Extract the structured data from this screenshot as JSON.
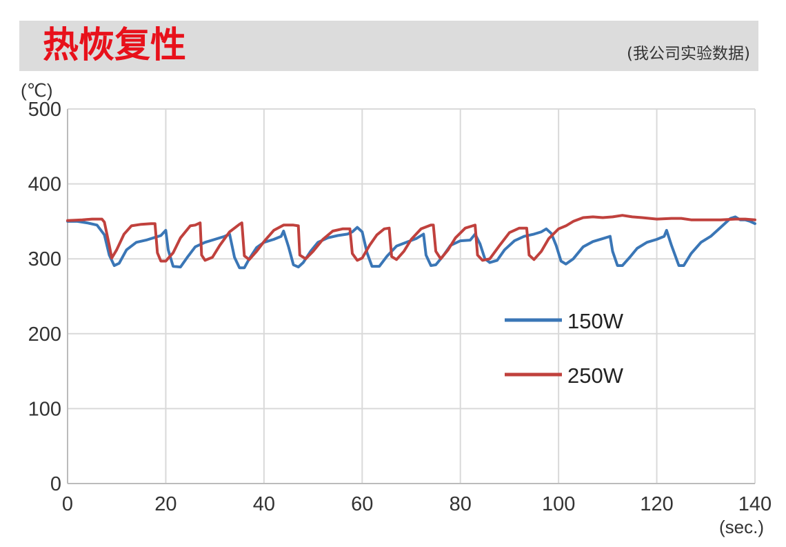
{
  "header": {
    "title": "热恢复性",
    "source_note": "(我公司实验数据)"
  },
  "colors": {
    "title": "#e8111b",
    "header_bg": "#dcdcdc",
    "series_150w": "#3a76b6",
    "series_250w": "#c0413d",
    "grid": "#d9d9d9"
  },
  "chart_data": {
    "type": "line",
    "ylabel": "(℃)",
    "xlabel": "(sec.)",
    "xlim": [
      0,
      140
    ],
    "ylim": [
      0,
      500
    ],
    "x_ticks": [
      "0",
      "20",
      "40",
      "60",
      "80",
      "100",
      "120",
      "140"
    ],
    "y_ticks": [
      "0",
      "100",
      "200",
      "300",
      "400",
      "500"
    ],
    "grid": true,
    "legend_position": "right-middle",
    "series": [
      {
        "name": "150W",
        "color": "#3a76b6",
        "points": [
          [
            0,
            350
          ],
          [
            2,
            350
          ],
          [
            4,
            348
          ],
          [
            6,
            345
          ],
          [
            7.5,
            332
          ],
          [
            8.5,
            305
          ],
          [
            9.5,
            291
          ],
          [
            10.5,
            294
          ],
          [
            12,
            312
          ],
          [
            14,
            322
          ],
          [
            16,
            325
          ],
          [
            18,
            329
          ],
          [
            19,
            331
          ],
          [
            20,
            338
          ],
          [
            20.5,
            312
          ],
          [
            21.5,
            290
          ],
          [
            23,
            289
          ],
          [
            24.5,
            303
          ],
          [
            26,
            316
          ],
          [
            28,
            322
          ],
          [
            30,
            326
          ],
          [
            32,
            330
          ],
          [
            33,
            333
          ],
          [
            34,
            302
          ],
          [
            35,
            288
          ],
          [
            36,
            288
          ],
          [
            37,
            300
          ],
          [
            38.5,
            315
          ],
          [
            40,
            322
          ],
          [
            42,
            326
          ],
          [
            43.5,
            330
          ],
          [
            44,
            337
          ],
          [
            45,
            316
          ],
          [
            46,
            292
          ],
          [
            47,
            289
          ],
          [
            48,
            295
          ],
          [
            49.5,
            310
          ],
          [
            51,
            322
          ],
          [
            53,
            328
          ],
          [
            55,
            331
          ],
          [
            57,
            333
          ],
          [
            58,
            336
          ],
          [
            59,
            342
          ],
          [
            60,
            336
          ],
          [
            61,
            308
          ],
          [
            62,
            290
          ],
          [
            63.5,
            290
          ],
          [
            65,
            303
          ],
          [
            67,
            317
          ],
          [
            69,
            322
          ],
          [
            71,
            327
          ],
          [
            72.5,
            333
          ],
          [
            73,
            305
          ],
          [
            74,
            291
          ],
          [
            75,
            292
          ],
          [
            76.5,
            304
          ],
          [
            78,
            318
          ],
          [
            80,
            324
          ],
          [
            82,
            325
          ],
          [
            83,
            333
          ],
          [
            84,
            320
          ],
          [
            85,
            300
          ],
          [
            86,
            295
          ],
          [
            87.5,
            298
          ],
          [
            89,
            312
          ],
          [
            91,
            324
          ],
          [
            93,
            330
          ],
          [
            95,
            333
          ],
          [
            96.5,
            336
          ],
          [
            97.5,
            340
          ],
          [
            98.5,
            334
          ],
          [
            99.5,
            318
          ],
          [
            100.5,
            297
          ],
          [
            101.5,
            293
          ],
          [
            103,
            300
          ],
          [
            105,
            316
          ],
          [
            107,
            323
          ],
          [
            109,
            327
          ],
          [
            110.5,
            330
          ],
          [
            111,
            310
          ],
          [
            112,
            291
          ],
          [
            113,
            291
          ],
          [
            114.5,
            302
          ],
          [
            116,
            314
          ],
          [
            118,
            322
          ],
          [
            120,
            326
          ],
          [
            121.5,
            330
          ],
          [
            122,
            338
          ],
          [
            123,
            318
          ],
          [
            124.5,
            291
          ],
          [
            125.5,
            291
          ],
          [
            127,
            307
          ],
          [
            129,
            322
          ],
          [
            131,
            330
          ],
          [
            133,
            342
          ],
          [
            135,
            354
          ],
          [
            136,
            356
          ],
          [
            137,
            352
          ],
          [
            138,
            352
          ],
          [
            139,
            350
          ],
          [
            140,
            347
          ]
        ]
      },
      {
        "name": "250W",
        "color": "#c0413d",
        "points": [
          [
            0,
            351
          ],
          [
            3,
            352
          ],
          [
            5,
            353
          ],
          [
            7,
            353
          ],
          [
            7.5,
            349
          ],
          [
            8.5,
            318
          ],
          [
            9,
            301
          ],
          [
            10,
            312
          ],
          [
            11.5,
            333
          ],
          [
            13,
            344
          ],
          [
            15,
            346
          ],
          [
            17,
            347
          ],
          [
            17.8,
            347
          ],
          [
            18.3,
            308
          ],
          [
            19,
            297
          ],
          [
            20,
            297
          ],
          [
            21.5,
            308
          ],
          [
            23,
            328
          ],
          [
            25,
            344
          ],
          [
            26,
            345
          ],
          [
            27,
            348
          ],
          [
            27.3,
            305
          ],
          [
            28,
            298
          ],
          [
            29.5,
            302
          ],
          [
            31,
            318
          ],
          [
            33,
            336
          ],
          [
            35,
            346
          ],
          [
            35.5,
            348
          ],
          [
            36,
            304
          ],
          [
            37,
            299
          ],
          [
            38.5,
            310
          ],
          [
            40,
            323
          ],
          [
            42,
            338
          ],
          [
            44,
            345
          ],
          [
            46,
            345
          ],
          [
            47,
            344
          ],
          [
            47.3,
            305
          ],
          [
            48.5,
            300
          ],
          [
            50,
            310
          ],
          [
            52,
            326
          ],
          [
            54,
            337
          ],
          [
            56,
            340
          ],
          [
            57.5,
            340
          ],
          [
            58,
            307
          ],
          [
            59,
            298
          ],
          [
            60,
            301
          ],
          [
            61.5,
            318
          ],
          [
            63,
            332
          ],
          [
            64.5,
            340
          ],
          [
            65.5,
            341
          ],
          [
            66,
            303
          ],
          [
            67,
            299
          ],
          [
            68.5,
            310
          ],
          [
            70,
            326
          ],
          [
            72,
            340
          ],
          [
            74,
            345
          ],
          [
            74.5,
            345
          ],
          [
            75,
            310
          ],
          [
            76,
            300
          ],
          [
            77.5,
            312
          ],
          [
            79,
            328
          ],
          [
            81,
            341
          ],
          [
            82.5,
            344
          ],
          [
            83,
            345
          ],
          [
            83.5,
            305
          ],
          [
            84.5,
            298
          ],
          [
            86,
            300
          ],
          [
            88,
            318
          ],
          [
            90,
            335
          ],
          [
            92,
            341
          ],
          [
            93.5,
            341
          ],
          [
            94,
            305
          ],
          [
            95,
            299
          ],
          [
            96.5,
            310
          ],
          [
            98,
            327
          ],
          [
            100,
            340
          ],
          [
            101.5,
            344
          ],
          [
            103,
            350
          ],
          [
            105,
            355
          ],
          [
            107,
            356
          ],
          [
            109,
            355
          ],
          [
            111,
            356
          ],
          [
            113,
            358
          ],
          [
            115,
            356
          ],
          [
            117,
            355
          ],
          [
            120,
            353
          ],
          [
            123,
            354
          ],
          [
            125,
            354
          ],
          [
            127,
            352
          ],
          [
            130,
            352
          ],
          [
            133,
            352
          ],
          [
            136,
            353
          ],
          [
            138,
            353
          ],
          [
            140,
            352
          ]
        ]
      }
    ]
  }
}
